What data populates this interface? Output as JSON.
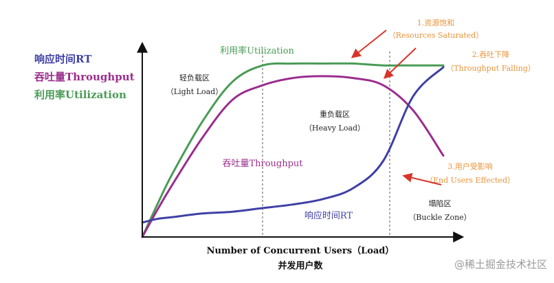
{
  "chart_data": {
    "type": "line",
    "xlabel": "Number of Concurrent Users（Load）",
    "xlabel_cn": "并发用户数",
    "grid": false,
    "legend_position": "top-left",
    "legend": [
      {
        "label": "响应时间RT",
        "color": "#3f3fa6"
      },
      {
        "label": "吞吐量Throughput",
        "color": "#9b2d8e"
      },
      {
        "label": "利用率Utilization",
        "color": "#4a9b56"
      }
    ],
    "series_labels": {
      "utilization": "利用率Utilization",
      "throughput": "吞吐量Throughput",
      "response_time": "响应时间RT"
    },
    "zones": [
      {
        "name": "轻负载区",
        "sub": "（Light Load）"
      },
      {
        "name": "重负载区",
        "sub": "（Heavy Load）"
      },
      {
        "name": "塌陷区",
        "sub": "（Buckle Zone）"
      }
    ],
    "annotations": [
      {
        "name": "1.资源饱和",
        "sub": "（Resources Saturated）"
      },
      {
        "name": "2.吞吐下降",
        "sub": "（Throughput Falling）"
      },
      {
        "name": "3.用户受影响",
        "sub": "（End Users Effected）"
      }
    ],
    "x": [
      0,
      5,
      10,
      20,
      30,
      40,
      50,
      60,
      70,
      80,
      90,
      100
    ],
    "series": [
      {
        "key": "utilization",
        "color": "#4a9b56",
        "values": [
          0,
          18,
          35,
          64,
          86,
          95,
          96,
          96,
          96,
          95,
          95,
          95
        ]
      },
      {
        "key": "throughput",
        "color": "#9b2d8e",
        "values": [
          0,
          15,
          29,
          55,
          76,
          84,
          88,
          89,
          88,
          84,
          70,
          45
        ]
      },
      {
        "key": "response_time",
        "color": "#3f3fa6",
        "values": [
          8,
          10,
          11,
          13,
          14,
          16,
          18,
          21,
          27,
          42,
          78,
          94
        ]
      }
    ],
    "xlim": [
      0,
      100
    ],
    "ylim": [
      0,
      100
    ],
    "colors": {
      "annotation": "#e8933a",
      "arrow": "#d8342a",
      "divider": "#555555"
    }
  },
  "watermark": "@稀土掘金技术社区"
}
